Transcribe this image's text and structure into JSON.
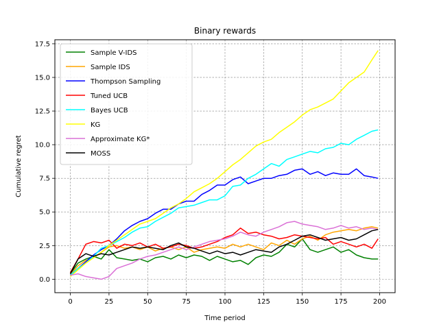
{
  "chart_data": {
    "type": "line",
    "title": "Binary rewards",
    "xlabel": "Time period",
    "ylabel": "Cumulative regret",
    "xlim": [
      -10,
      210
    ],
    "ylim": [
      -1.0,
      17.8
    ],
    "xticks": [
      0,
      25,
      50,
      75,
      100,
      125,
      150,
      175,
      200
    ],
    "yticks": [
      0.0,
      2.5,
      5.0,
      7.5,
      10.0,
      12.5,
      15.0,
      17.5
    ],
    "xtick_labels": [
      "0",
      "25",
      "50",
      "75",
      "100",
      "125",
      "150",
      "175",
      "200"
    ],
    "ytick_labels": [
      "0.0",
      "2.5",
      "5.0",
      "7.5",
      "10.0",
      "12.5",
      "15.0",
      "17.5"
    ],
    "grid": true,
    "legend_position": "top-left",
    "series": [
      {
        "name": "Sample V-IDS",
        "color": "#008000",
        "x": [
          0,
          5,
          10,
          15,
          20,
          25,
          30,
          35,
          40,
          45,
          50,
          55,
          60,
          65,
          70,
          75,
          80,
          85,
          90,
          95,
          100,
          105,
          110,
          115,
          120,
          125,
          130,
          135,
          140,
          145,
          150,
          155,
          160,
          165,
          170,
          175,
          180,
          185,
          190,
          195,
          199
        ],
        "values": [
          0.4,
          1.2,
          1.5,
          1.7,
          1.5,
          2.2,
          1.6,
          1.5,
          1.4,
          1.5,
          1.3,
          1.6,
          1.7,
          1.5,
          1.8,
          1.6,
          1.8,
          1.7,
          1.4,
          1.7,
          1.5,
          1.3,
          1.4,
          1.1,
          1.6,
          1.8,
          1.7,
          2.0,
          2.6,
          2.4,
          3.0,
          2.2,
          2.0,
          2.2,
          2.4,
          2.0,
          2.2,
          1.8,
          1.6,
          1.5,
          1.5
        ]
      },
      {
        "name": "Sample IDS",
        "color": "#FFA500",
        "x": [
          0,
          5,
          10,
          15,
          20,
          25,
          30,
          35,
          40,
          45,
          50,
          55,
          60,
          65,
          70,
          75,
          80,
          85,
          90,
          95,
          100,
          105,
          110,
          115,
          120,
          125,
          130,
          135,
          140,
          145,
          150,
          155,
          160,
          165,
          170,
          175,
          180,
          185,
          190,
          195,
          199
        ],
        "values": [
          0.3,
          1.0,
          1.4,
          1.6,
          2.0,
          2.4,
          2.5,
          2.3,
          2.4,
          2.2,
          2.4,
          2.1,
          2.3,
          2.4,
          2.2,
          2.4,
          2.0,
          2.2,
          2.3,
          2.4,
          2.3,
          2.6,
          2.4,
          2.6,
          2.4,
          2.2,
          2.7,
          2.5,
          2.9,
          2.6,
          3.0,
          3.2,
          2.9,
          3.3,
          3.5,
          3.6,
          3.7,
          3.6,
          3.8,
          3.9,
          3.8
        ]
      },
      {
        "name": "Thompson Sampling",
        "color": "#0000FF",
        "x": [
          0,
          5,
          10,
          15,
          20,
          25,
          30,
          35,
          40,
          45,
          50,
          55,
          60,
          65,
          70,
          75,
          80,
          85,
          90,
          95,
          100,
          105,
          110,
          115,
          120,
          125,
          130,
          135,
          140,
          145,
          150,
          155,
          160,
          165,
          170,
          175,
          180,
          185,
          190,
          195,
          199
        ],
        "values": [
          0.3,
          0.8,
          1.3,
          1.8,
          2.2,
          2.5,
          3.0,
          3.6,
          4.0,
          4.3,
          4.5,
          4.9,
          5.2,
          5.2,
          5.6,
          5.8,
          5.8,
          6.3,
          6.6,
          7.0,
          7.0,
          7.4,
          7.6,
          7.1,
          7.3,
          7.5,
          7.5,
          7.7,
          7.8,
          8.1,
          8.2,
          7.8,
          8.0,
          7.7,
          7.9,
          7.8,
          7.8,
          8.2,
          7.7,
          7.6,
          7.5
        ]
      },
      {
        "name": "Tuned UCB",
        "color": "#FF0000",
        "x": [
          0,
          5,
          10,
          15,
          20,
          25,
          30,
          35,
          40,
          45,
          50,
          55,
          60,
          65,
          70,
          75,
          80,
          85,
          90,
          95,
          100,
          105,
          110,
          115,
          120,
          125,
          130,
          135,
          140,
          145,
          150,
          155,
          160,
          165,
          170,
          175,
          180,
          185,
          190,
          195,
          199
        ],
        "values": [
          0.5,
          1.5,
          2.6,
          2.8,
          2.7,
          2.9,
          2.3,
          2.6,
          2.5,
          2.7,
          2.4,
          2.6,
          2.3,
          2.4,
          2.6,
          2.5,
          2.3,
          2.4,
          2.6,
          2.8,
          3.1,
          3.3,
          3.8,
          3.4,
          3.5,
          3.3,
          3.2,
          3.0,
          3.1,
          3.3,
          3.2,
          3.1,
          3.0,
          3.1,
          2.6,
          2.8,
          2.6,
          2.4,
          2.6,
          2.3,
          3.0
        ]
      },
      {
        "name": "Bayes UCB",
        "color": "#00FFFF",
        "x": [
          0,
          5,
          10,
          15,
          20,
          25,
          30,
          35,
          40,
          45,
          50,
          55,
          60,
          65,
          70,
          75,
          80,
          85,
          90,
          95,
          100,
          105,
          110,
          115,
          120,
          125,
          130,
          135,
          140,
          145,
          150,
          155,
          160,
          165,
          170,
          175,
          180,
          185,
          190,
          195,
          199
        ],
        "values": [
          0.3,
          0.8,
          1.2,
          1.7,
          2.3,
          2.5,
          2.8,
          3.1,
          3.5,
          3.8,
          3.9,
          4.3,
          4.6,
          4.9,
          5.3,
          5.4,
          5.5,
          5.7,
          5.9,
          5.9,
          6.2,
          6.9,
          7.0,
          7.5,
          7.8,
          8.2,
          8.6,
          8.4,
          8.9,
          9.1,
          9.3,
          9.5,
          9.4,
          9.7,
          9.8,
          10.1,
          10.0,
          10.4,
          10.7,
          11.0,
          11.1
        ]
      },
      {
        "name": "KG",
        "color": "#FFFF00",
        "x": [
          0,
          5,
          10,
          15,
          20,
          25,
          30,
          35,
          40,
          45,
          50,
          55,
          60,
          65,
          70,
          75,
          80,
          85,
          90,
          95,
          100,
          105,
          110,
          115,
          120,
          125,
          130,
          135,
          140,
          145,
          150,
          155,
          160,
          165,
          170,
          175,
          180,
          185,
          190,
          195,
          199
        ],
        "values": [
          0.2,
          0.7,
          1.2,
          1.6,
          2.0,
          2.5,
          2.9,
          3.3,
          3.7,
          4.1,
          4.3,
          4.5,
          4.9,
          5.3,
          5.6,
          6.0,
          6.5,
          6.8,
          7.1,
          7.5,
          8.0,
          8.5,
          8.9,
          9.4,
          9.9,
          10.2,
          10.4,
          10.9,
          11.3,
          11.7,
          12.2,
          12.6,
          12.8,
          13.1,
          13.4,
          14.0,
          14.6,
          15.0,
          15.4,
          16.3,
          17.0
        ]
      },
      {
        "name": "Approximate KG*",
        "color": "#DA70D6",
        "x": [
          0,
          5,
          10,
          15,
          20,
          25,
          30,
          35,
          40,
          45,
          50,
          55,
          60,
          65,
          70,
          75,
          80,
          85,
          90,
          95,
          100,
          105,
          110,
          115,
          120,
          125,
          130,
          135,
          140,
          145,
          150,
          155,
          160,
          165,
          170,
          175,
          180,
          185,
          190,
          195,
          199
        ],
        "values": [
          0.3,
          0.4,
          0.2,
          0.1,
          0.0,
          0.2,
          0.8,
          1.0,
          1.2,
          1.5,
          1.7,
          1.8,
          2.0,
          2.2,
          2.4,
          2.2,
          2.4,
          2.6,
          2.8,
          2.9,
          3.0,
          3.2,
          3.5,
          3.3,
          3.2,
          3.5,
          3.7,
          3.9,
          4.2,
          4.3,
          4.1,
          4.0,
          3.9,
          3.7,
          3.8,
          4.0,
          3.8,
          3.9,
          3.7,
          3.8,
          3.7
        ]
      },
      {
        "name": "MOSS",
        "color": "#000000",
        "x": [
          0,
          5,
          10,
          15,
          20,
          25,
          30,
          35,
          40,
          45,
          50,
          55,
          60,
          65,
          70,
          75,
          80,
          85,
          90,
          95,
          100,
          105,
          110,
          115,
          120,
          125,
          130,
          135,
          140,
          145,
          150,
          155,
          160,
          165,
          170,
          175,
          180,
          185,
          190,
          195,
          199
        ],
        "values": [
          0.4,
          1.5,
          1.9,
          1.7,
          1.9,
          1.8,
          2.0,
          2.2,
          2.4,
          2.3,
          2.4,
          2.3,
          2.2,
          2.5,
          2.7,
          2.4,
          2.3,
          2.1,
          1.9,
          2.1,
          1.9,
          2.0,
          1.8,
          2.0,
          2.2,
          2.1,
          2.0,
          2.4,
          2.6,
          2.9,
          3.2,
          3.3,
          3.1,
          2.9,
          3.0,
          3.1,
          2.9,
          3.0,
          3.3,
          3.6,
          3.7
        ]
      }
    ]
  }
}
